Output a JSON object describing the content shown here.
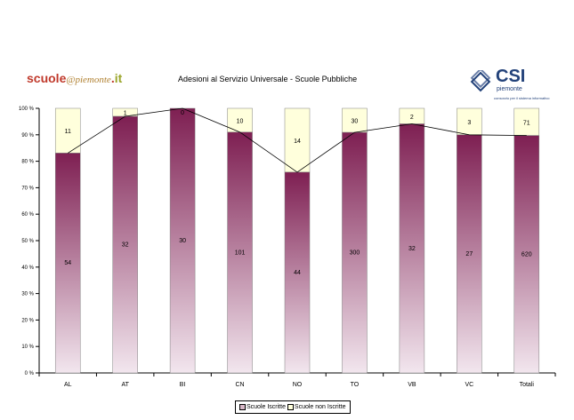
{
  "header": {
    "logo_left": {
      "part1": "scuole",
      "part2": "@piemonte",
      "part3": ".",
      "part4": "it"
    },
    "title": "Adesioni al Servizio Universale - Scuole Pubbliche",
    "logo_right": {
      "name": "CSI",
      "sub": "piemonte",
      "tagline": "consorzio per il sistema informativo"
    }
  },
  "colors": {
    "iscritte_top": "#7e1f52",
    "iscritte_bottom": "#f2e6ee",
    "non_iscritte": "#ffffdc",
    "line": "#000000"
  },
  "chart_data": {
    "type": "bar",
    "stacked": "percent",
    "categories": [
      "AL",
      "AT",
      "BI",
      "CN",
      "NO",
      "TO",
      "VB",
      "VC",
      "Totali"
    ],
    "series": [
      {
        "name": "Scuole Iscritte",
        "values": [
          54,
          32,
          30,
          101,
          44,
          300,
          32,
          27,
          620
        ]
      },
      {
        "name": "Scuole non Iscritte",
        "values": [
          11,
          1,
          0,
          10,
          14,
          30,
          2,
          3,
          71
        ]
      }
    ],
    "yticks": [
      "0 %",
      "10 %",
      "20 %",
      "30 %",
      "40 %",
      "50 %",
      "60 %",
      "70 %",
      "80 %",
      "90 %",
      "100 %"
    ],
    "ylim": [
      0,
      100
    ],
    "legend": "bottom",
    "grid": false
  }
}
